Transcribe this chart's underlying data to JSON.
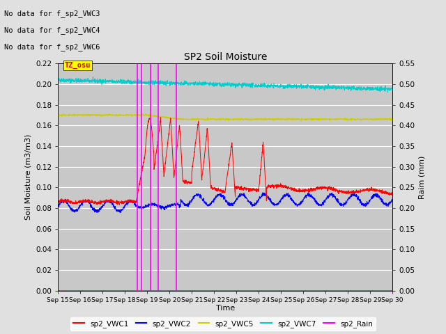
{
  "title": "SP2 Soil Moisture",
  "xlabel": "Time",
  "ylabel_left": "Soil Moisture (m3/m3)",
  "ylabel_right": "Raim (mm)",
  "ylim_left": [
    0,
    0.22
  ],
  "ylim_right": [
    0.0,
    0.55
  ],
  "yticks_left": [
    0.0,
    0.02,
    0.04,
    0.06,
    0.08,
    0.1,
    0.12,
    0.14,
    0.16,
    0.18,
    0.2,
    0.22
  ],
  "yticks_right": [
    0.0,
    0.05,
    0.1,
    0.15,
    0.2,
    0.25,
    0.3,
    0.35,
    0.4,
    0.45,
    0.5,
    0.55
  ],
  "xtick_labels": [
    "Sep 15",
    "Sep 16",
    "Sep 17",
    "Sep 18",
    "Sep 19",
    "Sep 20",
    "Sep 21",
    "Sep 22",
    "Sep 23",
    "Sep 24",
    "Sep 25",
    "Sep 26",
    "Sep 27",
    "Sep 28",
    "Sep 29",
    "Sep 30"
  ],
  "nodata_text": [
    "No data for f_sp2_VWC3",
    "No data for f_sp2_VWC4",
    "No data for f_sp2_VWC6"
  ],
  "tz_label": "TZ_osu",
  "bg_color": "#e0e0e0",
  "plot_bg_color": "#c8c8c8",
  "vline_color": "#ff00ff",
  "vline_positions": [
    18.55,
    18.75,
    19.15,
    19.5,
    20.3
  ],
  "series_colors": {
    "VWC1": "#ff0000",
    "VWC2": "#0000ff",
    "VWC5": "#ffff00",
    "VWC7": "#00ffff",
    "Rain": "#ff00ff"
  },
  "legend_entries": [
    "sp2_VWC1",
    "sp2_VWC2",
    "sp2_VWC5",
    "sp2_VWC7",
    "sp2_Rain"
  ]
}
